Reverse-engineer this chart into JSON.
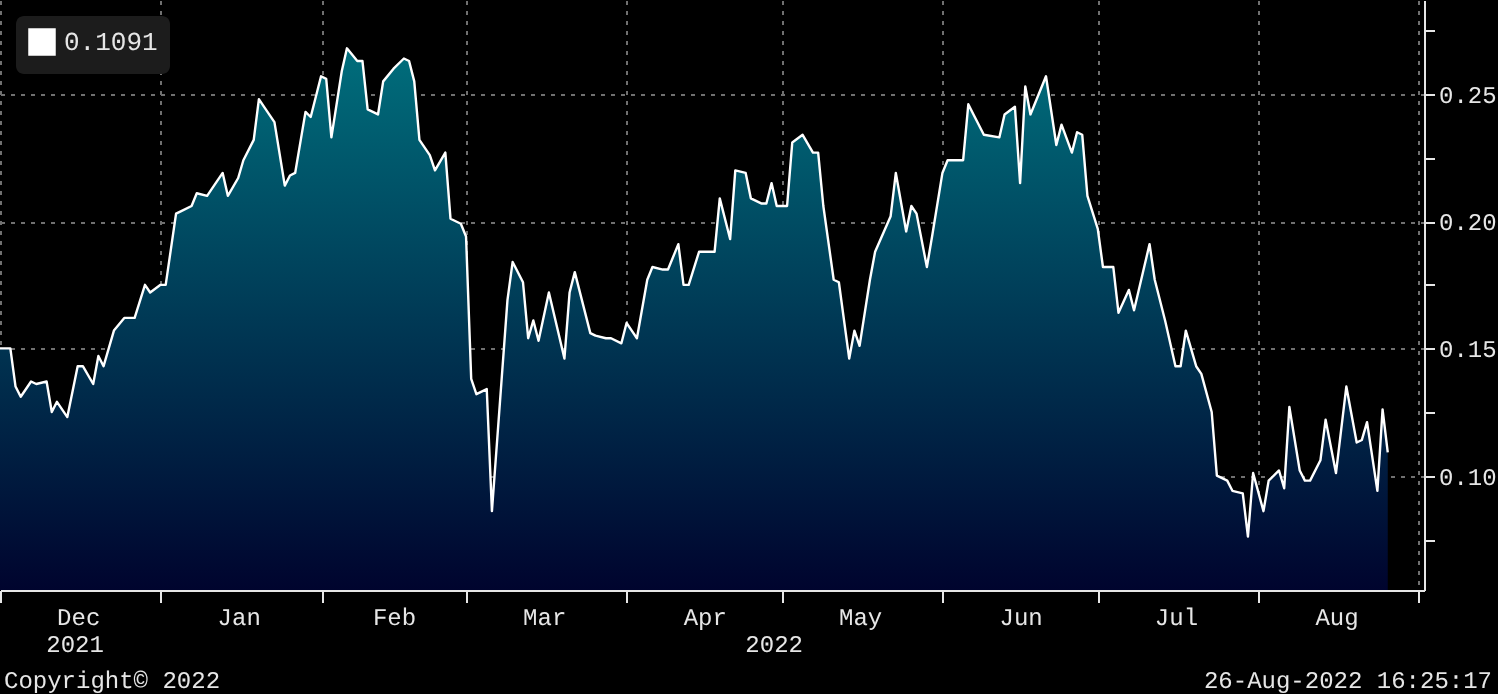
{
  "chart_data": {
    "type": "area",
    "x": [
      "2021-12-01",
      "2021-12-03",
      "2021-12-04",
      "2021-12-05",
      "2021-12-07",
      "2021-12-08",
      "2021-12-10",
      "2021-12-11",
      "2021-12-12",
      "2021-12-14",
      "2021-12-16",
      "2021-12-17",
      "2021-12-19",
      "2021-12-20",
      "2021-12-21",
      "2021-12-23",
      "2021-12-25",
      "2021-12-27",
      "2021-12-29",
      "2021-12-30",
      "2022-01-01",
      "2022-01-02",
      "2022-01-04",
      "2022-01-05",
      "2022-01-07",
      "2022-01-08",
      "2022-01-10",
      "2022-01-11",
      "2022-01-13",
      "2022-01-14",
      "2022-01-16",
      "2022-01-17",
      "2022-01-19",
      "2022-01-20",
      "2022-01-21",
      "2022-01-23",
      "2022-01-25",
      "2022-01-26",
      "2022-01-27",
      "2022-01-29",
      "2022-01-30",
      "2022-02-01",
      "2022-02-02",
      "2022-02-03",
      "2022-02-05",
      "2022-02-06",
      "2022-02-08",
      "2022-02-09",
      "2022-02-10",
      "2022-02-12",
      "2022-02-13",
      "2022-02-15",
      "2022-02-17",
      "2022-02-18",
      "2022-02-19",
      "2022-02-20",
      "2022-02-22",
      "2022-02-23",
      "2022-02-25",
      "2022-02-26",
      "2022-02-28",
      "2022-03-01",
      "2022-03-02",
      "2022-03-03",
      "2022-03-05",
      "2022-03-06",
      "2022-03-09",
      "2022-03-10",
      "2022-03-12",
      "2022-03-13",
      "2022-03-14",
      "2022-03-15",
      "2022-03-17",
      "2022-03-20",
      "2022-03-21",
      "2022-03-22",
      "2022-03-25",
      "2022-03-26",
      "2022-03-28",
      "2022-03-29",
      "2022-03-31",
      "2022-04-01",
      "2022-04-02",
      "2022-04-03",
      "2022-04-05",
      "2022-04-06",
      "2022-04-08",
      "2022-04-09",
      "2022-04-11",
      "2022-04-12",
      "2022-04-13",
      "2022-04-15",
      "2022-04-18",
      "2022-04-19",
      "2022-04-21",
      "2022-04-22",
      "2022-04-24",
      "2022-04-25",
      "2022-04-27",
      "2022-04-28",
      "2022-04-29",
      "2022-04-30",
      "2022-05-02",
      "2022-05-03",
      "2022-05-05",
      "2022-05-07",
      "2022-05-08",
      "2022-05-09",
      "2022-05-11",
      "2022-05-12",
      "2022-05-14",
      "2022-05-15",
      "2022-05-16",
      "2022-05-18",
      "2022-05-19",
      "2022-05-22",
      "2022-05-23",
      "2022-05-25",
      "2022-05-26",
      "2022-05-27",
      "2022-05-29",
      "2022-05-30",
      "2022-06-01",
      "2022-06-02",
      "2022-06-05",
      "2022-06-06",
      "2022-06-07",
      "2022-06-09",
      "2022-06-12",
      "2022-06-13",
      "2022-06-15",
      "2022-06-16",
      "2022-06-17",
      "2022-06-18",
      "2022-06-21",
      "2022-06-23",
      "2022-06-24",
      "2022-06-26",
      "2022-06-27",
      "2022-06-28",
      "2022-06-29",
      "2022-07-01",
      "2022-07-02",
      "2022-07-04",
      "2022-07-05",
      "2022-07-07",
      "2022-07-08",
      "2022-07-11",
      "2022-07-12",
      "2022-07-14",
      "2022-07-16",
      "2022-07-17",
      "2022-07-18",
      "2022-07-20",
      "2022-07-21",
      "2022-07-23",
      "2022-07-24",
      "2022-07-26",
      "2022-07-27",
      "2022-07-29",
      "2022-07-30",
      "2022-07-31",
      "2022-08-02",
      "2022-08-03",
      "2022-08-05",
      "2022-08-06",
      "2022-08-07",
      "2022-08-09",
      "2022-08-10",
      "2022-08-11",
      "2022-08-13",
      "2022-08-14",
      "2022-08-16",
      "2022-08-18",
      "2022-08-20",
      "2022-08-21",
      "2022-08-22",
      "2022-08-24",
      "2022-08-25",
      "2022-08-26"
    ],
    "series": [
      {
        "name": "0.1091",
        "color": "#ffffff",
        "values": [
          0.15,
          0.15,
          0.135,
          0.131,
          0.137,
          0.136,
          0.137,
          0.125,
          0.129,
          0.123,
          0.143,
          0.143,
          0.136,
          0.147,
          0.143,
          0.157,
          0.162,
          0.162,
          0.175,
          0.172,
          0.175,
          0.175,
          0.203,
          0.204,
          0.206,
          0.211,
          0.21,
          0.213,
          0.219,
          0.21,
          0.217,
          0.224,
          0.232,
          0.248,
          0.245,
          0.239,
          0.214,
          0.218,
          0.219,
          0.243,
          0.241,
          0.257,
          0.256,
          0.233,
          0.259,
          0.268,
          0.263,
          0.263,
          0.244,
          0.242,
          0.255,
          0.26,
          0.264,
          0.263,
          0.255,
          0.232,
          0.226,
          0.22,
          0.227,
          0.201,
          0.199,
          0.194,
          0.138,
          0.132,
          0.134,
          0.086,
          0.169,
          0.184,
          0.176,
          0.154,
          0.161,
          0.153,
          0.172,
          0.146,
          0.172,
          0.18,
          0.156,
          0.155,
          0.154,
          0.154,
          0.152,
          0.16,
          0.157,
          0.154,
          0.177,
          0.182,
          0.181,
          0.181,
          0.191,
          0.175,
          0.175,
          0.188,
          0.188,
          0.209,
          0.193,
          0.22,
          0.219,
          0.209,
          0.207,
          0.207,
          0.215,
          0.206,
          0.206,
          0.231,
          0.234,
          0.227,
          0.227,
          0.206,
          0.177,
          0.176,
          0.146,
          0.157,
          0.151,
          0.177,
          0.188,
          0.202,
          0.219,
          0.196,
          0.206,
          0.203,
          0.182,
          0.194,
          0.219,
          0.224,
          0.224,
          0.246,
          0.242,
          0.234,
          0.233,
          0.242,
          0.245,
          0.215,
          0.253,
          0.242,
          0.257,
          0.23,
          0.238,
          0.227,
          0.235,
          0.234,
          0.21,
          0.197,
          0.182,
          0.182,
          0.164,
          0.173,
          0.165,
          0.191,
          0.177,
          0.161,
          0.143,
          0.143,
          0.157,
          0.143,
          0.14,
          0.125,
          0.1,
          0.098,
          0.094,
          0.093,
          0.076,
          0.101,
          0.086,
          0.098,
          0.102,
          0.095,
          0.127,
          0.102,
          0.098,
          0.098,
          0.106,
          0.122,
          0.101,
          0.135,
          0.113,
          0.114,
          0.121,
          0.094,
          0.126,
          0.1091
        ]
      }
    ],
    "xlim": [
      "2021-12-01",
      "2022-09-02"
    ],
    "xticks": [
      {
        "value": "2021-12-01",
        "label": null
      },
      {
        "value": "2021-12-16",
        "label": "Dec"
      },
      {
        "value": "2022-01-01",
        "label": null
      },
      {
        "value": "2022-01-16",
        "label": "Jan"
      },
      {
        "value": "2022-02-01",
        "label": null
      },
      {
        "value": "2022-02-15",
        "label": "Feb"
      },
      {
        "value": "2022-03-01",
        "label": null
      },
      {
        "value": "2022-03-16",
        "label": "Mar"
      },
      {
        "value": "2022-04-01",
        "label": null
      },
      {
        "value": "2022-04-16",
        "label": "Apr"
      },
      {
        "value": "2022-05-01",
        "label": null
      },
      {
        "value": "2022-05-16",
        "label": "May"
      },
      {
        "value": "2022-06-01",
        "label": null
      },
      {
        "value": "2022-06-16",
        "label": "Jun"
      },
      {
        "value": "2022-07-01",
        "label": null
      },
      {
        "value": "2022-07-16",
        "label": "Jul"
      },
      {
        "value": "2022-08-01",
        "label": null
      },
      {
        "value": "2022-08-16",
        "label": "Aug"
      },
      {
        "value": "2022-09-01",
        "label": null
      }
    ],
    "ylim": [
      0.055,
      0.287
    ],
    "yticks": [
      {
        "value": 0.075,
        "label": null
      },
      {
        "value": 0.1,
        "label": "0.10"
      },
      {
        "value": 0.125,
        "label": null
      },
      {
        "value": 0.15,
        "label": "0.15"
      },
      {
        "value": 0.175,
        "label": null
      },
      {
        "value": 0.2,
        "label": "0.20"
      },
      {
        "value": 0.225,
        "label": null
      },
      {
        "value": 0.25,
        "label": "0.25"
      },
      {
        "value": 0.275,
        "label": null
      }
    ],
    "grid": true,
    "legend": "top left",
    "annotations": [
      "2021",
      "2022",
      "Copyright© 2022",
      "26-Aug-2022 16:25:17"
    ]
  }
}
